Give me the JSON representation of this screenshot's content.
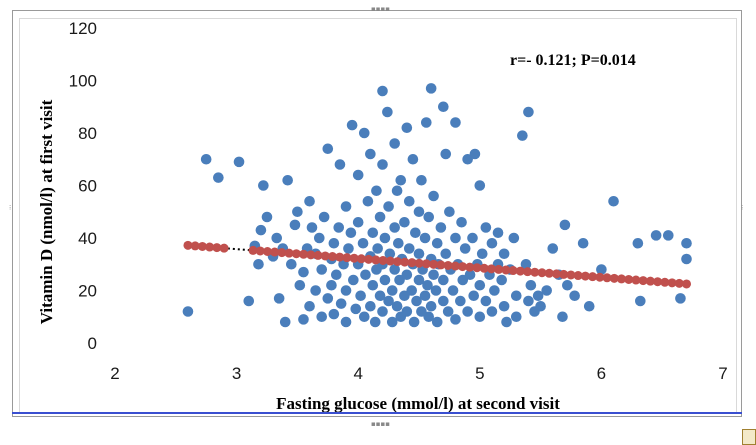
{
  "chart_data": {
    "type": "scatter",
    "title": "",
    "xlabel": "Fasting glucose (mmol/l) at second visit",
    "ylabel": "Vitamin  D (nmol/l) at first visit",
    "annotation": "r=- 0.121; P=0.014",
    "xlim": [
      2,
      7
    ],
    "ylim": [
      0,
      120
    ],
    "xticks": [
      "2",
      "3",
      "4",
      "5",
      "6",
      "7"
    ],
    "yticks": [
      "0",
      "20",
      "40",
      "60",
      "80",
      "100",
      "120"
    ],
    "grid": false,
    "legend": "none",
    "colors": {
      "points": "#4a7ebb",
      "fit": "#c0504d",
      "trendline": "#000000"
    },
    "trendline": {
      "style": "dotted",
      "x": [
        2.6,
        6.7
      ],
      "y": [
        37.2,
        22.5
      ]
    },
    "series": [
      {
        "role": "observed",
        "points": [
          [
            2.6,
            12
          ],
          [
            2.75,
            70
          ],
          [
            2.85,
            63
          ],
          [
            3.02,
            69
          ],
          [
            3.1,
            16
          ],
          [
            3.15,
            37
          ],
          [
            3.18,
            30
          ],
          [
            3.2,
            43
          ],
          [
            3.22,
            60
          ],
          [
            3.25,
            48
          ],
          [
            3.3,
            33
          ],
          [
            3.33,
            40
          ],
          [
            3.38,
            36
          ],
          [
            3.35,
            17
          ],
          [
            3.4,
            8
          ],
          [
            3.42,
            62
          ],
          [
            3.45,
            30
          ],
          [
            3.48,
            45
          ],
          [
            3.5,
            50
          ],
          [
            3.52,
            22
          ],
          [
            3.55,
            9
          ],
          [
            3.55,
            27
          ],
          [
            3.58,
            36
          ],
          [
            3.6,
            54
          ],
          [
            3.6,
            14
          ],
          [
            3.62,
            44
          ],
          [
            3.65,
            20
          ],
          [
            3.65,
            34
          ],
          [
            3.68,
            40
          ],
          [
            3.7,
            10
          ],
          [
            3.7,
            28
          ],
          [
            3.72,
            48
          ],
          [
            3.75,
            74
          ],
          [
            3.75,
            17
          ],
          [
            3.78,
            22
          ],
          [
            3.78,
            32
          ],
          [
            3.8,
            38
          ],
          [
            3.8,
            11
          ],
          [
            3.82,
            26
          ],
          [
            3.84,
            44
          ],
          [
            3.85,
            68
          ],
          [
            3.86,
            15
          ],
          [
            3.88,
            30
          ],
          [
            3.9,
            52
          ],
          [
            3.9,
            8
          ],
          [
            3.9,
            20
          ],
          [
            3.92,
            36
          ],
          [
            3.94,
            42
          ],
          [
            3.95,
            83
          ],
          [
            3.96,
            24
          ],
          [
            3.98,
            13
          ],
          [
            4.0,
            30
          ],
          [
            4.0,
            64
          ],
          [
            4.0,
            46
          ],
          [
            4.02,
            18
          ],
          [
            4.04,
            38
          ],
          [
            4.05,
            10
          ],
          [
            4.05,
            80
          ],
          [
            4.06,
            26
          ],
          [
            4.08,
            54
          ],
          [
            4.1,
            33
          ],
          [
            4.1,
            14
          ],
          [
            4.1,
            72
          ],
          [
            4.12,
            22
          ],
          [
            4.12,
            42
          ],
          [
            4.14,
            8
          ],
          [
            4.15,
            58
          ],
          [
            4.15,
            28
          ],
          [
            4.16,
            36
          ],
          [
            4.18,
            18
          ],
          [
            4.18,
            48
          ],
          [
            4.2,
            12
          ],
          [
            4.2,
            68
          ],
          [
            4.2,
            30
          ],
          [
            4.2,
            96
          ],
          [
            4.22,
            24
          ],
          [
            4.22,
            40
          ],
          [
            4.24,
            88
          ],
          [
            4.25,
            16
          ],
          [
            4.25,
            52
          ],
          [
            4.26,
            34
          ],
          [
            4.28,
            8
          ],
          [
            4.28,
            20
          ],
          [
            4.3,
            76
          ],
          [
            4.3,
            28
          ],
          [
            4.3,
            44
          ],
          [
            4.32,
            14
          ],
          [
            4.32,
            58
          ],
          [
            4.33,
            38
          ],
          [
            4.34,
            24
          ],
          [
            4.35,
            10
          ],
          [
            4.35,
            62
          ],
          [
            4.36,
            32
          ],
          [
            4.38,
            18
          ],
          [
            4.38,
            46
          ],
          [
            4.4,
            82
          ],
          [
            4.4,
            26
          ],
          [
            4.4,
            12
          ],
          [
            4.42,
            36
          ],
          [
            4.42,
            54
          ],
          [
            4.44,
            20
          ],
          [
            4.45,
            70
          ],
          [
            4.45,
            30
          ],
          [
            4.46,
            8
          ],
          [
            4.47,
            42
          ],
          [
            4.48,
            16
          ],
          [
            4.5,
            24
          ],
          [
            4.5,
            50
          ],
          [
            4.5,
            34
          ],
          [
            4.52,
            12
          ],
          [
            4.52,
            62
          ],
          [
            4.53,
            28
          ],
          [
            4.55,
            40
          ],
          [
            4.55,
            18
          ],
          [
            4.56,
            84
          ],
          [
            4.57,
            22
          ],
          [
            4.58,
            10
          ],
          [
            4.58,
            48
          ],
          [
            4.6,
            32
          ],
          [
            4.6,
            97
          ],
          [
            4.6,
            14
          ],
          [
            4.62,
            26
          ],
          [
            4.62,
            56
          ],
          [
            4.64,
            20
          ],
          [
            4.65,
            38
          ],
          [
            4.65,
            8
          ],
          [
            4.66,
            30
          ],
          [
            4.68,
            44
          ],
          [
            4.7,
            90
          ],
          [
            4.7,
            16
          ],
          [
            4.7,
            24
          ],
          [
            4.72,
            72
          ],
          [
            4.72,
            34
          ],
          [
            4.74,
            12
          ],
          [
            4.75,
            50
          ],
          [
            4.76,
            28
          ],
          [
            4.78,
            20
          ],
          [
            4.8,
            84
          ],
          [
            4.8,
            40
          ],
          [
            4.8,
            9
          ],
          [
            4.82,
            30
          ],
          [
            4.84,
            16
          ],
          [
            4.85,
            46
          ],
          [
            4.86,
            24
          ],
          [
            4.88,
            36
          ],
          [
            4.9,
            12
          ],
          [
            4.9,
            70
          ],
          [
            4.92,
            26
          ],
          [
            4.94,
            40
          ],
          [
            4.95,
            18
          ],
          [
            4.96,
            72
          ],
          [
            4.98,
            30
          ],
          [
            5.0,
            10
          ],
          [
            5.0,
            60
          ],
          [
            5.0,
            22
          ],
          [
            5.02,
            34
          ],
          [
            5.05,
            16
          ],
          [
            5.05,
            44
          ],
          [
            5.08,
            26
          ],
          [
            5.1,
            38
          ],
          [
            5.1,
            12
          ],
          [
            5.12,
            20
          ],
          [
            5.15,
            30
          ],
          [
            5.15,
            42
          ],
          [
            5.18,
            24
          ],
          [
            5.2,
            14
          ],
          [
            5.2,
            34
          ],
          [
            5.22,
            8
          ],
          [
            5.25,
            28
          ],
          [
            5.28,
            40
          ],
          [
            5.3,
            18
          ],
          [
            5.3,
            10
          ],
          [
            5.35,
            79
          ],
          [
            5.38,
            30
          ],
          [
            5.4,
            88
          ],
          [
            5.4,
            16
          ],
          [
            5.42,
            22
          ],
          [
            5.45,
            12
          ],
          [
            5.48,
            18
          ],
          [
            5.5,
            14
          ],
          [
            5.55,
            20
          ],
          [
            5.6,
            36
          ],
          [
            5.65,
            26
          ],
          [
            5.68,
            10
          ],
          [
            5.7,
            45
          ],
          [
            5.72,
            22
          ],
          [
            5.78,
            18
          ],
          [
            5.85,
            38
          ],
          [
            5.9,
            14
          ],
          [
            6.0,
            28
          ],
          [
            6.1,
            54
          ],
          [
            6.3,
            38
          ],
          [
            6.32,
            16
          ],
          [
            6.45,
            41
          ],
          [
            6.55,
            41
          ],
          [
            6.65,
            17
          ],
          [
            6.7,
            38
          ],
          [
            6.7,
            32
          ]
        ]
      },
      {
        "role": "fitted",
        "x_start": 2.6,
        "x_end": 6.7,
        "y_start": 37.2,
        "y_end": 22.5,
        "count": 70
      }
    ]
  }
}
